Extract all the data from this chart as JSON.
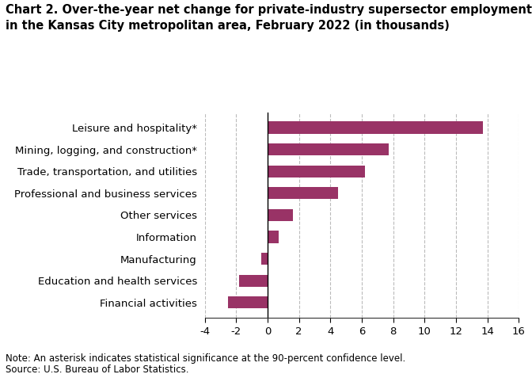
{
  "title": "Chart 2. Over-the-year net change for private-industry supersector employment\nin the Kansas City metropolitan area, February 2022 (in thousands)",
  "categories": [
    "Financial activities",
    "Education and health services",
    "Manufacturing",
    "Information",
    "Other services",
    "Professional and business services",
    "Trade, transportation, and utilities",
    "Mining, logging, and construction*",
    "Leisure and hospitality*"
  ],
  "values": [
    -2.5,
    -1.8,
    -0.4,
    0.7,
    1.6,
    4.5,
    6.2,
    7.7,
    13.7
  ],
  "bar_color": "#993366",
  "xlim": [
    -4,
    16
  ],
  "xticks": [
    -4,
    -2,
    0,
    2,
    4,
    6,
    8,
    10,
    12,
    14,
    16
  ],
  "note": "Note: An asterisk indicates statistical significance at the 90-percent confidence level.",
  "source": "Source: U.S. Bureau of Labor Statistics.",
  "grid_color": "#bbbbbb",
  "background_color": "#ffffff",
  "title_fontsize": 10.5,
  "label_fontsize": 9.5,
  "tick_fontsize": 9.5,
  "note_fontsize": 8.5
}
